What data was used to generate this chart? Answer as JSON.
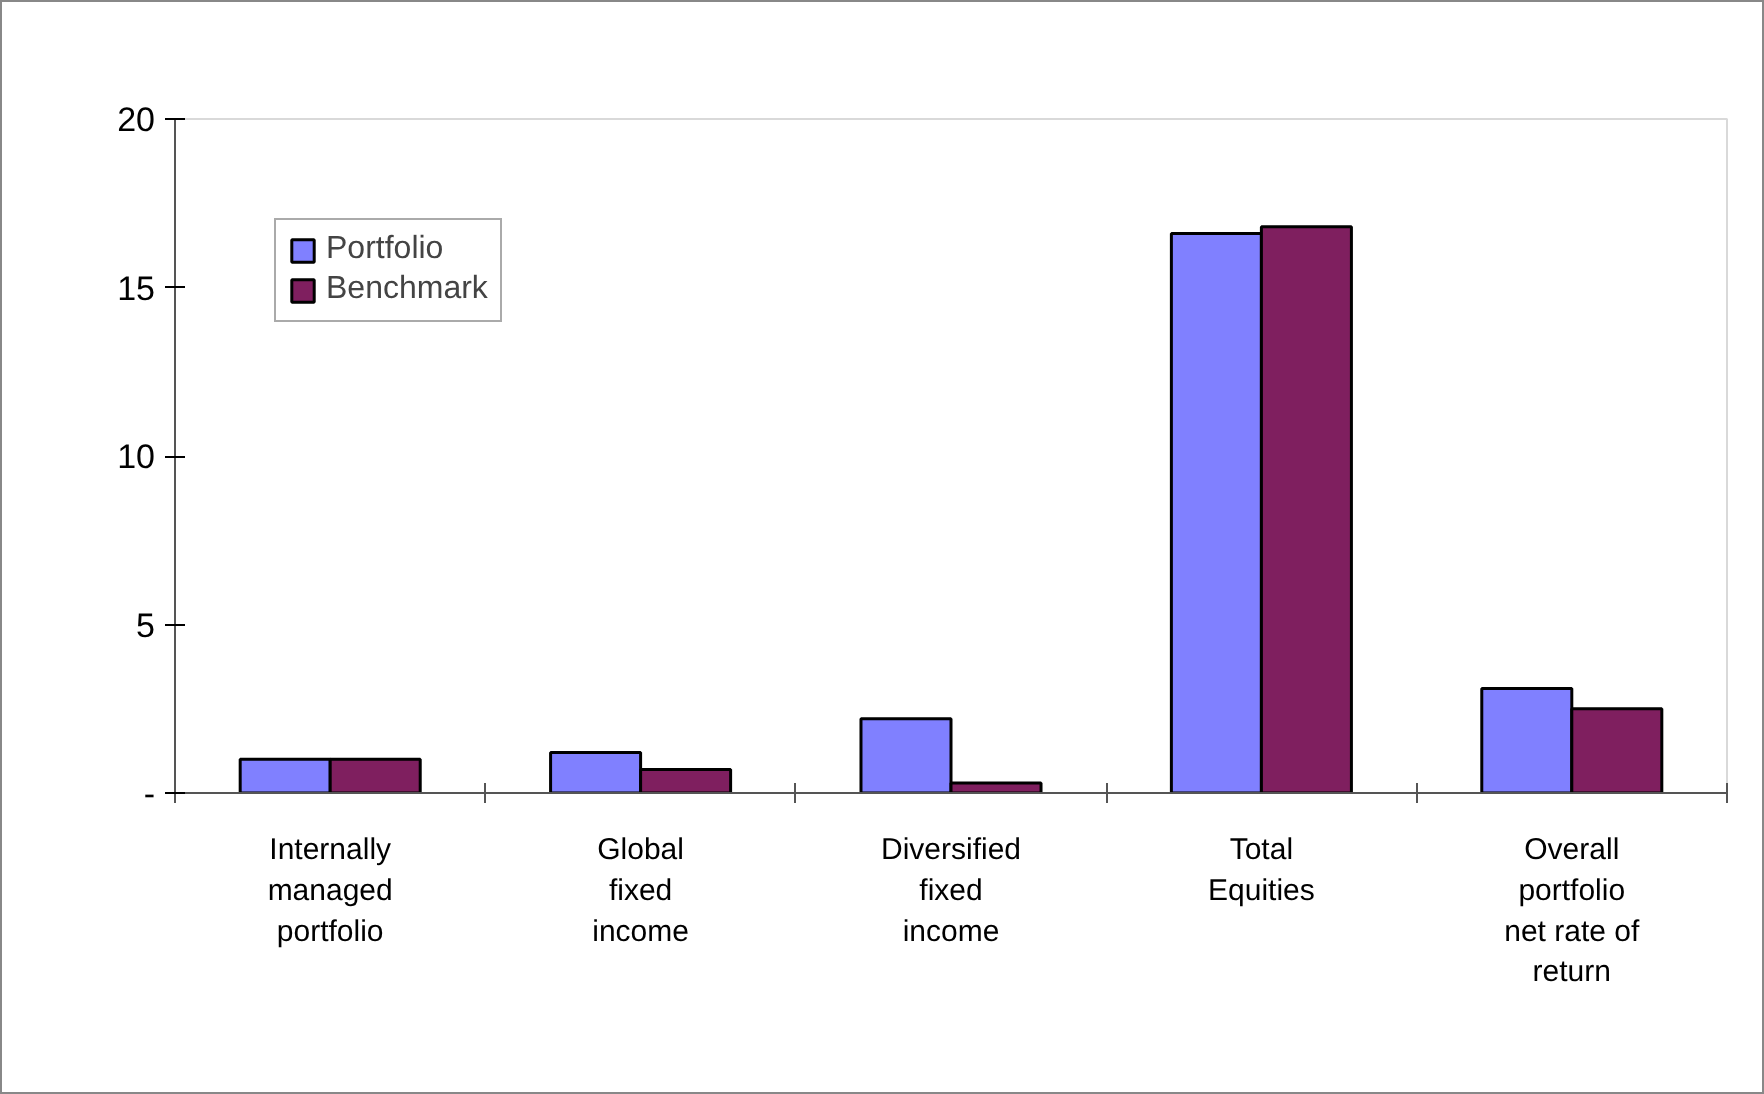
{
  "chart_data": {
    "type": "bar",
    "categories": [
      "Internally managed portfolio",
      "Global fixed income",
      "Diversified fixed income",
      "Total Equities",
      "Overall portfolio net rate of return"
    ],
    "series": [
      {
        "name": "Portfolio",
        "color": "#8080ff",
        "values": [
          1.0,
          1.2,
          2.2,
          16.6,
          3.1
        ]
      },
      {
        "name": "Benchmark",
        "color": "#7f1f5f",
        "values": [
          1.0,
          0.7,
          0.3,
          16.8,
          2.5
        ]
      }
    ],
    "ylim": [
      0,
      20
    ],
    "yticks": [
      {
        "value": 0,
        "label": "-"
      },
      5,
      10,
      15,
      20
    ],
    "grid": false,
    "legend": "top left"
  }
}
